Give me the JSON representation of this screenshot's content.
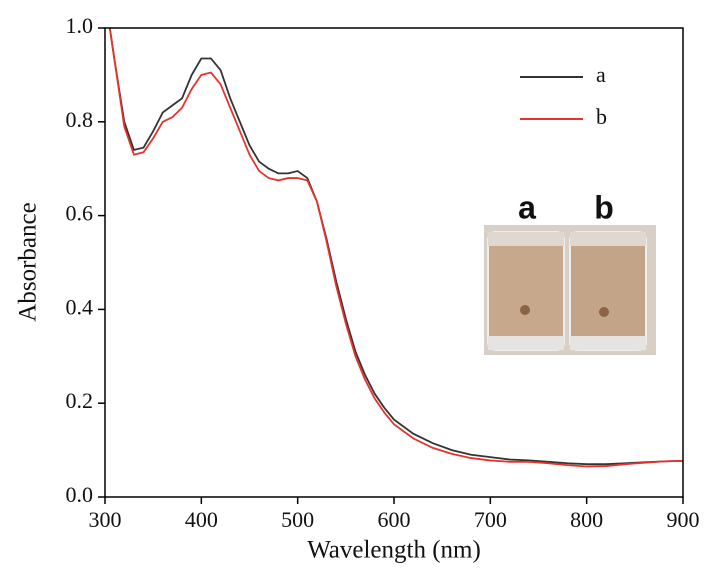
{
  "chart_data": {
    "type": "line",
    "xlabel": "Wavelength (nm)",
    "ylabel": "Absorbance",
    "x": [
      305,
      310,
      320,
      330,
      340,
      350,
      360,
      370,
      380,
      390,
      400,
      410,
      420,
      430,
      440,
      450,
      460,
      470,
      480,
      490,
      500,
      510,
      520,
      530,
      540,
      550,
      560,
      570,
      580,
      590,
      600,
      620,
      640,
      660,
      680,
      700,
      720,
      740,
      760,
      780,
      800,
      820,
      840,
      860,
      880,
      900
    ],
    "series": [
      {
        "name": "a",
        "color": "#333333",
        "values": [
          1.0,
          0.93,
          0.8,
          0.74,
          0.745,
          0.78,
          0.82,
          0.835,
          0.85,
          0.9,
          0.935,
          0.935,
          0.91,
          0.85,
          0.8,
          0.75,
          0.715,
          0.7,
          0.69,
          0.69,
          0.695,
          0.68,
          0.63,
          0.55,
          0.46,
          0.38,
          0.31,
          0.26,
          0.22,
          0.19,
          0.165,
          0.135,
          0.115,
          0.1,
          0.09,
          0.085,
          0.08,
          0.078,
          0.075,
          0.072,
          0.07,
          0.07,
          0.072,
          0.074,
          0.076,
          0.077
        ]
      },
      {
        "name": "b",
        "color": "#e8322d",
        "values": [
          1.0,
          0.93,
          0.79,
          0.73,
          0.735,
          0.765,
          0.8,
          0.81,
          0.83,
          0.87,
          0.9,
          0.905,
          0.88,
          0.83,
          0.78,
          0.73,
          0.695,
          0.68,
          0.675,
          0.68,
          0.68,
          0.675,
          0.63,
          0.545,
          0.45,
          0.37,
          0.3,
          0.25,
          0.21,
          0.18,
          0.155,
          0.125,
          0.105,
          0.092,
          0.083,
          0.078,
          0.075,
          0.075,
          0.072,
          0.068,
          0.065,
          0.066,
          0.07,
          0.073,
          0.076,
          0.077
        ]
      }
    ],
    "xlim": [
      300,
      900
    ],
    "xticks": [
      300,
      400,
      500,
      600,
      700,
      800,
      900
    ],
    "ylim": [
      0,
      1
    ],
    "yticks": [
      {
        "value": 0,
        "label": "0.0"
      },
      {
        "value": 0.2,
        "label": "0.2"
      },
      {
        "value": 0.4,
        "label": "0.4"
      },
      {
        "value": 0.6,
        "label": "0.6"
      },
      {
        "value": 0.8,
        "label": "0.8"
      },
      {
        "value": 1,
        "label": "1.0"
      }
    ],
    "legend": "upper right",
    "inset_labels": [
      "a",
      "b"
    ]
  }
}
